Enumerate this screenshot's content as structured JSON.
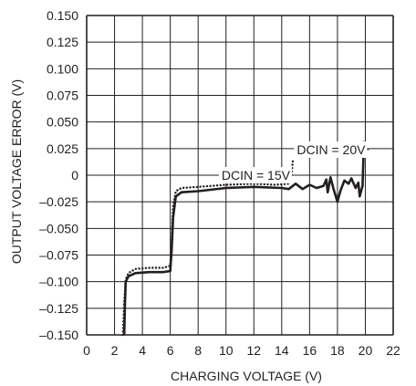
{
  "chart_data": {
    "type": "line",
    "xlabel": "CHARGING VOLTAGE (V)",
    "ylabel": "OUTPUT VOLTAGE ERROR (V)",
    "xlim": [
      0,
      22
    ],
    "ylim": [
      -0.15,
      0.15
    ],
    "x_ticks": [
      "0",
      "2",
      "4",
      "6",
      "8",
      "10",
      "12",
      "14",
      "16",
      "18",
      "20",
      "22"
    ],
    "y_ticks": [
      "0.150",
      "0.125",
      "0.100",
      "0.075",
      "0.050",
      "0.025",
      "0",
      "–0.025",
      "–0.050",
      "–0.075",
      "–0.100",
      "–0.125",
      "–0.150"
    ],
    "grid": true,
    "series": [
      {
        "name": "DCIN = 15V",
        "style": "dotted",
        "color": "#231f20",
        "points": [
          [
            2.6,
            -0.15
          ],
          [
            2.7,
            -0.12
          ],
          [
            2.8,
            -0.098
          ],
          [
            3.0,
            -0.092
          ],
          [
            3.5,
            -0.088
          ],
          [
            4.5,
            -0.087
          ],
          [
            5.5,
            -0.087
          ],
          [
            6.0,
            -0.085
          ],
          [
            6.1,
            -0.06
          ],
          [
            6.2,
            -0.03
          ],
          [
            6.4,
            -0.015
          ],
          [
            6.8,
            -0.012
          ],
          [
            8.0,
            -0.011
          ],
          [
            10.0,
            -0.009
          ],
          [
            12.0,
            -0.008
          ],
          [
            13.5,
            -0.009
          ],
          [
            14.5,
            -0.008
          ],
          [
            14.7,
            0.0
          ],
          [
            14.8,
            0.014
          ]
        ]
      },
      {
        "name": "DCIN = 20V",
        "style": "solid",
        "color": "#231f20",
        "points": [
          [
            2.7,
            -0.15
          ],
          [
            2.75,
            -0.12
          ],
          [
            2.8,
            -0.1
          ],
          [
            3.0,
            -0.095
          ],
          [
            3.5,
            -0.092
          ],
          [
            4.5,
            -0.091
          ],
          [
            5.5,
            -0.091
          ],
          [
            6.0,
            -0.09
          ],
          [
            6.1,
            -0.07
          ],
          [
            6.2,
            -0.04
          ],
          [
            6.4,
            -0.02
          ],
          [
            6.8,
            -0.016
          ],
          [
            8.0,
            -0.015
          ],
          [
            10.0,
            -0.012
          ],
          [
            12.0,
            -0.011
          ],
          [
            14.0,
            -0.012
          ],
          [
            14.5,
            -0.013
          ],
          [
            15.0,
            -0.008
          ],
          [
            15.5,
            -0.013
          ],
          [
            16.0,
            -0.009
          ],
          [
            16.5,
            -0.012
          ],
          [
            17.0,
            -0.01
          ],
          [
            17.2,
            -0.004
          ],
          [
            17.3,
            -0.016
          ],
          [
            17.5,
            -0.002
          ],
          [
            17.7,
            -0.012
          ],
          [
            18.0,
            -0.025
          ],
          [
            18.2,
            -0.015
          ],
          [
            18.5,
            -0.005
          ],
          [
            18.8,
            -0.008
          ],
          [
            19.0,
            -0.003
          ],
          [
            19.3,
            -0.012
          ],
          [
            19.5,
            -0.007
          ],
          [
            19.6,
            -0.02
          ],
          [
            19.8,
            -0.01
          ],
          [
            19.9,
            0.032
          ]
        ]
      }
    ],
    "annotations": [
      {
        "text": "DCIN = 20V",
        "x": 20.0,
        "y": 0.024,
        "target": [
          20.0,
          0.024
        ]
      },
      {
        "text": "DCIN = 15V",
        "x": 14.6,
        "y": 0.0,
        "target": [
          14.6,
          0.0
        ]
      }
    ]
  }
}
